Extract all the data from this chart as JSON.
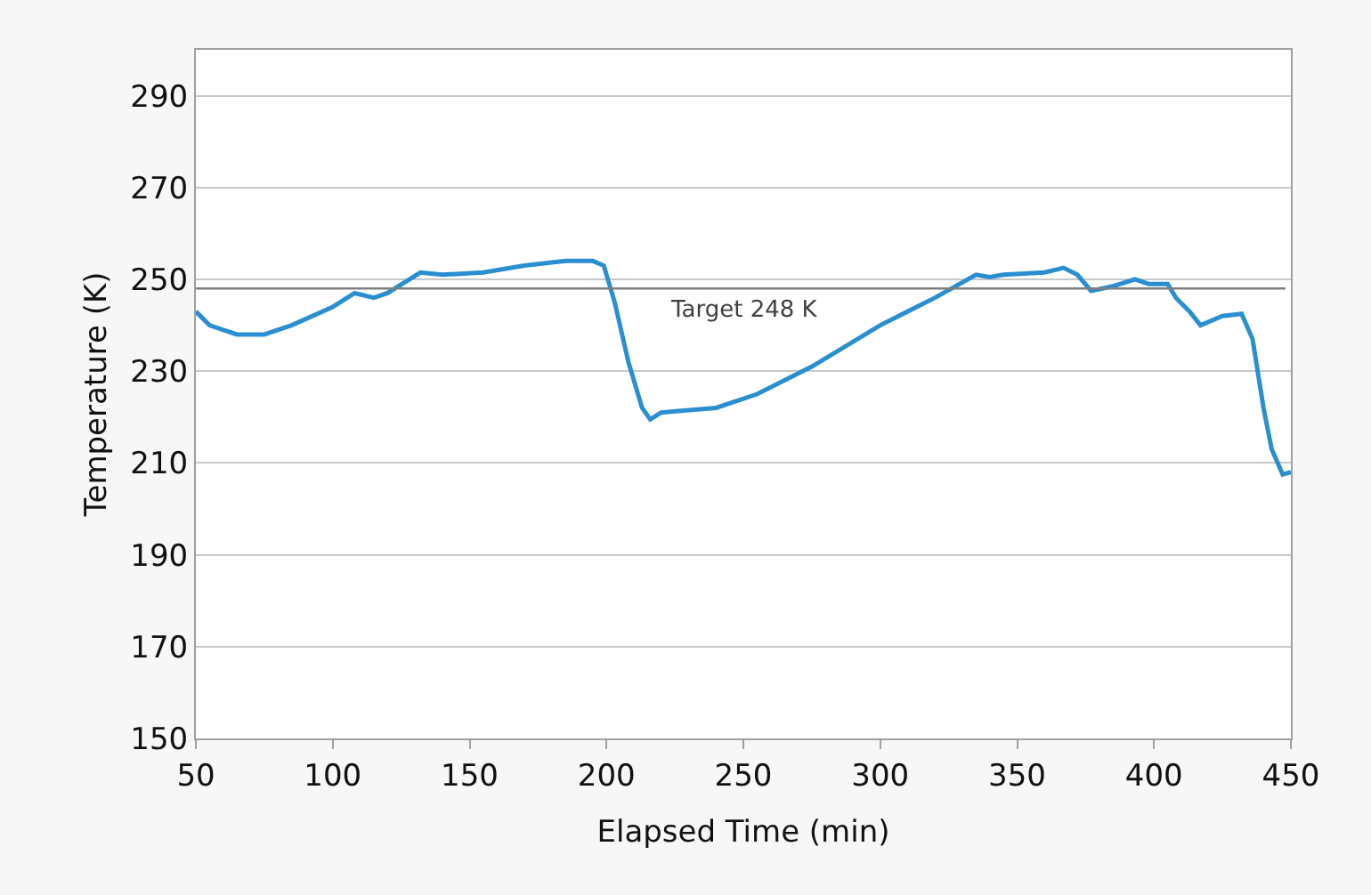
{
  "chart_data": {
    "type": "line",
    "xlabel": "Elapsed Time (min)",
    "ylabel": "Temperature (K)",
    "xlim": [
      50,
      450
    ],
    "xticks": [
      50,
      100,
      150,
      200,
      250,
      300,
      350,
      400,
      450
    ],
    "ylim": [
      150,
      300
    ],
    "yticks": [
      150,
      170,
      190,
      210,
      230,
      250,
      270,
      290
    ],
    "grid": "y",
    "marker": "none",
    "line_style": "solid",
    "ref_lines": [
      {
        "axis": "y",
        "value": 248,
        "label": "Target 248 K",
        "color": "#7f7f7f"
      }
    ],
    "series": [
      {
        "color": "#2a8fd0",
        "x": [
          50,
          55,
          65,
          75,
          85,
          100,
          108,
          115,
          120,
          132,
          140,
          155,
          170,
          185,
          195,
          199,
          203,
          208,
          213,
          216,
          220,
          240,
          255,
          275,
          300,
          320,
          335,
          340,
          345,
          360,
          367,
          372,
          377,
          385,
          393,
          398,
          405,
          408,
          413,
          417,
          425,
          432,
          436,
          440,
          443,
          447,
          450
        ],
        "values": [
          243,
          240,
          238,
          238,
          240,
          244,
          247,
          246,
          247,
          251.5,
          251,
          251.5,
          253,
          254,
          254,
          253,
          245,
          232,
          222,
          219.5,
          221,
          222,
          225,
          231,
          240,
          246,
          251,
          250.5,
          251,
          251.5,
          252.5,
          251,
          247.5,
          248.5,
          250,
          249,
          249,
          246,
          243,
          240,
          242,
          242.5,
          237,
          222,
          213,
          207.5,
          208
        ]
      }
    ]
  }
}
